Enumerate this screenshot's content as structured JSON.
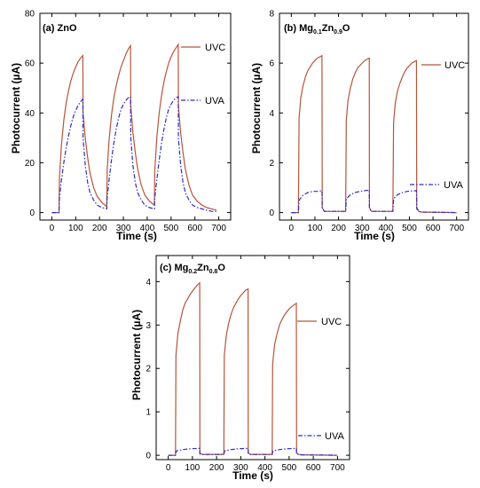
{
  "chart_data": [
    {
      "type": "line",
      "panel_label": "(a) ZnO",
      "xlabel": "Time (s)",
      "ylabel": "Photocurrent (µA)",
      "xlim": [
        -50,
        750
      ],
      "ylim": [
        -3,
        80
      ],
      "xticks": [
        0,
        100,
        200,
        300,
        400,
        500,
        600,
        700
      ],
      "yticks": [
        0,
        20,
        40,
        60,
        80
      ],
      "legend_placement": "right",
      "series": [
        {
          "name": "UVC",
          "color": "#b5553a",
          "dash": "solid",
          "x": [
            0,
            30,
            32,
            40,
            50,
            60,
            70,
            80,
            90,
            100,
            110,
            120,
            130,
            131,
            140,
            150,
            160,
            175,
            190,
            210,
            230,
            232,
            240,
            250,
            260,
            270,
            280,
            290,
            300,
            310,
            320,
            330,
            331,
            340,
            350,
            360,
            375,
            390,
            410,
            430,
            432,
            440,
            450,
            460,
            470,
            480,
            490,
            500,
            510,
            520,
            530,
            531,
            540,
            550,
            560,
            575,
            590,
            610,
            630,
            650,
            670,
            690
          ],
          "y": [
            0,
            0,
            14,
            27,
            37,
            44,
            49,
            53,
            56,
            58.5,
            60.5,
            62,
            63,
            40,
            30,
            22,
            16,
            10,
            6.5,
            4,
            2.5,
            17,
            29,
            39,
            46,
            51,
            55,
            58.5,
            61,
            63.5,
            65.5,
            67,
            43,
            32,
            24,
            17.5,
            11,
            7,
            4.5,
            3,
            17,
            30,
            40,
            47,
            52.5,
            56.5,
            60,
            62.5,
            64.5,
            66,
            67.5,
            43,
            32,
            24,
            17.5,
            11,
            7,
            4.5,
            3,
            2,
            1.5,
            1
          ]
        },
        {
          "name": "UVA",
          "color": "#2d2dc8",
          "dash": "dash-dot",
          "x": [
            0,
            30,
            32,
            40,
            50,
            60,
            70,
            80,
            90,
            100,
            110,
            120,
            130,
            131,
            140,
            150,
            160,
            175,
            190,
            210,
            230,
            232,
            240,
            250,
            260,
            270,
            280,
            290,
            300,
            310,
            320,
            330,
            331,
            340,
            350,
            360,
            375,
            390,
            410,
            430,
            432,
            440,
            450,
            460,
            470,
            480,
            490,
            500,
            510,
            520,
            530,
            531,
            540,
            550,
            560,
            575,
            590,
            610,
            630,
            650,
            670,
            690
          ],
          "y": [
            0,
            0,
            6,
            13,
            20,
            26,
            31,
            35,
            38.5,
            41,
            43,
            44.5,
            45.5,
            30,
            19,
            12,
            8,
            5,
            3,
            2,
            1.5,
            6,
            13,
            21,
            28,
            33.5,
            38,
            41.5,
            43.5,
            45,
            46,
            46.5,
            30,
            19,
            12,
            8,
            5,
            3,
            2,
            1.5,
            6,
            13,
            21,
            28,
            33.5,
            38,
            41.5,
            43.5,
            45,
            46,
            46.5,
            30,
            19,
            12,
            8,
            5,
            3,
            2,
            1.5,
            1,
            0.5,
            0.5
          ]
        }
      ]
    },
    {
      "type": "line",
      "panel_label_prefix": "(b) Mg",
      "panel_label_sub1": "0.1",
      "panel_label_mid": "Zn",
      "panel_label_sub2": "0.9",
      "panel_label_suffix": "O",
      "xlabel": "Time (s)",
      "ylabel": "Photocurrent (µA)",
      "xlim": [
        -50,
        750
      ],
      "ylim": [
        -0.3,
        8
      ],
      "xticks": [
        0,
        100,
        200,
        300,
        400,
        500,
        600,
        700
      ],
      "yticks": [
        0,
        2,
        4,
        6,
        8
      ],
      "legend_placement": "right",
      "series": [
        {
          "name": "UVC",
          "color": "#b5553a",
          "dash": "solid",
          "x": [
            0,
            30,
            33,
            40,
            50,
            60,
            70,
            80,
            90,
            100,
            110,
            120,
            130,
            131,
            140,
            230,
            233,
            240,
            250,
            260,
            270,
            280,
            290,
            300,
            310,
            320,
            330,
            331,
            340,
            430,
            433,
            440,
            450,
            460,
            470,
            480,
            490,
            500,
            510,
            520,
            530,
            531,
            540,
            550,
            700
          ],
          "y": [
            0,
            0,
            3.8,
            4.6,
            5.1,
            5.45,
            5.7,
            5.85,
            6.0,
            6.1,
            6.2,
            6.25,
            6.3,
            0.2,
            0.05,
            0.05,
            3.7,
            4.5,
            5.0,
            5.35,
            5.6,
            5.8,
            5.9,
            6.0,
            6.1,
            6.15,
            6.2,
            0.2,
            0.05,
            0.05,
            3.6,
            4.4,
            4.9,
            5.2,
            5.45,
            5.65,
            5.8,
            5.9,
            6.0,
            6.05,
            6.1,
            0.2,
            0.05,
            0.02,
            0
          ]
        },
        {
          "name": "UVA",
          "color": "#2d2dc8",
          "dash": "dash-dot",
          "x": [
            0,
            30,
            33,
            50,
            70,
            90,
            110,
            130,
            131,
            140,
            230,
            233,
            250,
            270,
            290,
            310,
            330,
            331,
            340,
            430,
            433,
            450,
            470,
            490,
            510,
            530,
            531,
            540,
            550,
            700
          ],
          "y": [
            0,
            0,
            0.5,
            0.7,
            0.8,
            0.85,
            0.85,
            0.88,
            0.15,
            0.05,
            0.05,
            0.55,
            0.72,
            0.8,
            0.85,
            0.88,
            0.9,
            0.15,
            0.05,
            0.05,
            0.55,
            0.72,
            0.8,
            0.85,
            0.87,
            0.88,
            0.15,
            0.05,
            0.02,
            0
          ]
        }
      ]
    },
    {
      "type": "line",
      "panel_label_prefix": "(c) Mg",
      "panel_label_sub1": "0.2",
      "panel_label_mid": "Zn",
      "panel_label_sub2": "0.8",
      "panel_label_suffix": "O",
      "xlabel": "Time (s)",
      "ylabel": "Photocurrent (µA)",
      "xlim": [
        -50,
        750
      ],
      "ylim": [
        -0.1,
        4.6
      ],
      "xticks": [
        0,
        100,
        200,
        300,
        400,
        500,
        600,
        700
      ],
      "yticks": [
        0,
        1,
        2,
        3,
        4
      ],
      "legend_placement": "right",
      "series": [
        {
          "name": "UVC",
          "color": "#b5553a",
          "dash": "solid",
          "x": [
            0,
            30,
            32,
            40,
            50,
            60,
            70,
            80,
            90,
            100,
            110,
            120,
            130,
            131,
            140,
            230,
            232,
            240,
            250,
            260,
            270,
            280,
            290,
            300,
            310,
            320,
            330,
            331,
            340,
            430,
            432,
            440,
            450,
            460,
            470,
            480,
            490,
            500,
            510,
            520,
            530,
            531,
            540,
            550,
            700
          ],
          "y": [
            0,
            0,
            2.3,
            2.8,
            3.1,
            3.35,
            3.5,
            3.6,
            3.7,
            3.78,
            3.85,
            3.92,
            3.97,
            0.05,
            0.02,
            0.02,
            2.3,
            2.75,
            3.05,
            3.25,
            3.4,
            3.5,
            3.6,
            3.68,
            3.74,
            3.8,
            3.83,
            0.05,
            0.02,
            0.02,
            2.1,
            2.55,
            2.8,
            3.0,
            3.12,
            3.22,
            3.3,
            3.37,
            3.42,
            3.46,
            3.5,
            0.05,
            0.02,
            0.01,
            0
          ]
        },
        {
          "name": "UVA",
          "color": "#2d2dc8",
          "dash": "dash-dot",
          "x": [
            0,
            30,
            33,
            60,
            90,
            130,
            131,
            140,
            230,
            233,
            260,
            290,
            330,
            331,
            340,
            430,
            433,
            460,
            490,
            530,
            531,
            540,
            550,
            700
          ],
          "y": [
            0,
            0,
            0.1,
            0.13,
            0.15,
            0.16,
            0.03,
            0.02,
            0.02,
            0.1,
            0.13,
            0.15,
            0.16,
            0.03,
            0.02,
            0.02,
            0.1,
            0.13,
            0.15,
            0.16,
            0.03,
            0.02,
            0.01,
            0
          ]
        }
      ]
    }
  ]
}
